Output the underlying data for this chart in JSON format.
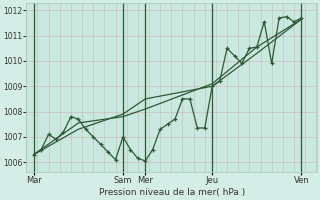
{
  "xlabel": "Pression niveau de la mer( hPa )",
  "background_color": "#d4ede6",
  "plot_bg_color": "#c8e8e0",
  "grid_color_minor": "#e8b0b0",
  "grid_color_major": "#2d5a35",
  "line_color": "#2d5a35",
  "ylim": [
    1005.6,
    1012.3
  ],
  "yticks": [
    1006,
    1007,
    1008,
    1009,
    1010,
    1011,
    1012
  ],
  "day_labels": [
    "Mar",
    "Sam",
    "Mer",
    "Jeu",
    "Ven"
  ],
  "day_x": [
    0,
    96,
    120,
    192,
    288
  ],
  "vline_x": [
    0,
    96,
    120,
    192,
    288
  ],
  "xlim": [
    -8,
    305
  ],
  "series_detail": {
    "x": [
      0,
      8,
      16,
      24,
      32,
      40,
      48,
      56,
      64,
      72,
      80,
      88,
      96,
      104,
      112,
      120,
      128,
      136,
      144,
      152,
      160,
      168,
      176,
      184,
      192,
      200,
      208,
      216,
      224,
      232,
      240,
      248,
      256,
      264,
      272,
      280,
      288
    ],
    "y": [
      1006.3,
      1006.5,
      1007.1,
      1006.9,
      1007.2,
      1007.8,
      1007.7,
      1007.3,
      1007.0,
      1006.7,
      1006.4,
      1006.1,
      1007.0,
      1006.5,
      1006.15,
      1006.05,
      1006.5,
      1007.3,
      1007.5,
      1007.7,
      1008.5,
      1008.5,
      1007.35,
      1007.35,
      1009.0,
      1009.2,
      1010.5,
      1010.2,
      1009.9,
      1010.5,
      1010.55,
      1011.55,
      1009.9,
      1011.7,
      1011.75,
      1011.55,
      1011.7
    ]
  },
  "series_trend1": {
    "x": [
      0,
      48,
      96,
      120,
      192,
      240,
      288
    ],
    "y": [
      1006.3,
      1007.55,
      1007.8,
      1008.1,
      1009.1,
      1010.55,
      1011.65
    ]
  },
  "series_trend2": {
    "x": [
      0,
      48,
      96,
      120,
      192,
      240,
      288
    ],
    "y": [
      1006.3,
      1007.3,
      1007.9,
      1008.5,
      1009.0,
      1010.3,
      1011.65
    ]
  }
}
